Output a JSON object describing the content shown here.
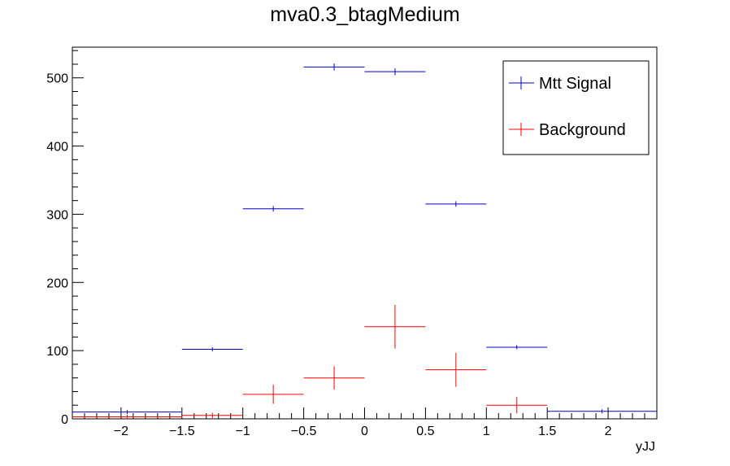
{
  "chart_data": {
    "type": "scatter",
    "title": "mva0.3_btagMedium",
    "xlabel": "yJJ",
    "ylabel": "",
    "xlim": [
      -2.4,
      2.4
    ],
    "ylim": [
      0,
      545
    ],
    "x_ticks": [
      -2,
      -1.5,
      -1,
      -0.5,
      0,
      0.5,
      1,
      1.5,
      2
    ],
    "x_tick_labels": [
      "−2",
      "−1.5",
      "−1",
      "−0.5",
      "0",
      "0.5",
      "1",
      "1.5",
      "2"
    ],
    "y_ticks": [
      0,
      100,
      200,
      300,
      400,
      500
    ],
    "y_tick_labels": [
      "0",
      "100",
      "200",
      "300",
      "400",
      "500"
    ],
    "grid": false,
    "legend_position": "top-right",
    "series": [
      {
        "name": "Mtt Signal",
        "color": "#0000cc",
        "points": [
          {
            "xlow": -2.4,
            "xhigh": -1.5,
            "x": -1.95,
            "y": 10,
            "err": 3
          },
          {
            "xlow": -1.5,
            "xhigh": -1.0,
            "x": -1.25,
            "y": 102,
            "err": 3
          },
          {
            "xlow": -1.0,
            "xhigh": -0.5,
            "x": -0.75,
            "y": 308,
            "err": 4
          },
          {
            "xlow": -0.5,
            "xhigh": 0.0,
            "x": -0.25,
            "y": 516,
            "err": 5
          },
          {
            "xlow": 0.0,
            "xhigh": 0.5,
            "x": 0.25,
            "y": 509,
            "err": 5
          },
          {
            "xlow": 0.5,
            "xhigh": 1.0,
            "x": 0.75,
            "y": 315,
            "err": 4
          },
          {
            "xlow": 1.0,
            "xhigh": 1.5,
            "x": 1.25,
            "y": 105,
            "err": 3
          },
          {
            "xlow": 1.5,
            "xhigh": 2.4,
            "x": 1.95,
            "y": 11,
            "err": 3
          }
        ]
      },
      {
        "name": "Background",
        "color": "#ff0000",
        "points": [
          {
            "xlow": -2.4,
            "xhigh": -1.5,
            "x": -1.95,
            "y": 3,
            "err": 3
          },
          {
            "xlow": -1.5,
            "xhigh": -1.0,
            "x": -1.25,
            "y": 5,
            "err": 4
          },
          {
            "xlow": -1.0,
            "xhigh": -0.5,
            "x": -0.75,
            "y": 36,
            "err": 14
          },
          {
            "xlow": -0.5,
            "xhigh": 0.0,
            "x": -0.25,
            "y": 60,
            "err": 17
          },
          {
            "xlow": 0.0,
            "xhigh": 0.5,
            "x": 0.25,
            "y": 135,
            "err": 32
          },
          {
            "xlow": 0.5,
            "xhigh": 1.0,
            "x": 0.75,
            "y": 72,
            "err": 25
          },
          {
            "xlow": 1.0,
            "xhigh": 1.5,
            "x": 1.25,
            "y": 20,
            "err": 12
          }
        ]
      }
    ]
  }
}
